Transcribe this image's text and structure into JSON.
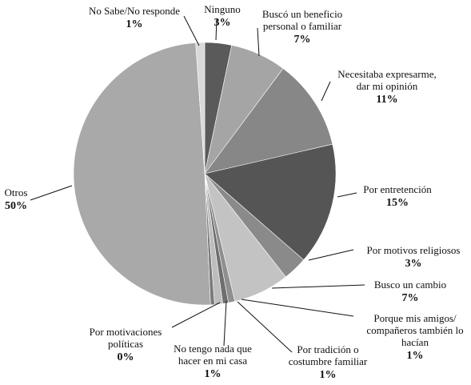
{
  "chart_data": {
    "type": "pie",
    "start_angle_deg": 0,
    "direction": "clockwise",
    "slices": [
      {
        "label": [
          "Ninguno"
        ],
        "pct_label": "3%",
        "value": 3.3,
        "color": "#5a5a5a"
      },
      {
        "label": [
          "Buscó un beneficio",
          "personal o familiar"
        ],
        "pct_label": "7%",
        "value": 6.9,
        "color": "#a5a5a5"
      },
      {
        "label": [
          "Necesitaba expresarme,",
          "dar mi opinión"
        ],
        "pct_label": "11%",
        "value": 11.2,
        "color": "#878787"
      },
      {
        "label": [
          "Por entretención"
        ],
        "pct_label": "15%",
        "value": 15.0,
        "color": "#555555"
      },
      {
        "label": [
          "Por motivos religiosos"
        ],
        "pct_label": "3%",
        "value": 3.0,
        "color": "#8a8a8a"
      },
      {
        "label": [
          "Busco un cambio"
        ],
        "pct_label": "7%",
        "value": 6.9,
        "color": "#c3c3c3"
      },
      {
        "label": [
          "Porque mis amigos/",
          "compañeros también lo",
          "hacían"
        ],
        "pct_label": "1%",
        "value": 0.8,
        "color": "#8f8f8f"
      },
      {
        "label": [
          "Por tradición o",
          "costumbre familiar"
        ],
        "pct_label": "1%",
        "value": 0.7,
        "color": "#6f6f6f"
      },
      {
        "label": [
          "No tengo nada que",
          "hacer en mi casa"
        ],
        "pct_label": "1%",
        "value": 1.0,
        "color": "#bdbdbd"
      },
      {
        "label": [
          "Por motivaciones",
          "políticas"
        ],
        "pct_label": "0%",
        "value": 0.5,
        "color": "#7a7a7a"
      },
      {
        "label": [
          "Otros"
        ],
        "pct_label": "50%",
        "value": 49.6,
        "color": "#a9a9a9"
      },
      {
        "label": [
          "No Sabe/No responde"
        ],
        "pct_label": "1%",
        "value": 1.1,
        "color": "#d9d9d9"
      }
    ]
  }
}
